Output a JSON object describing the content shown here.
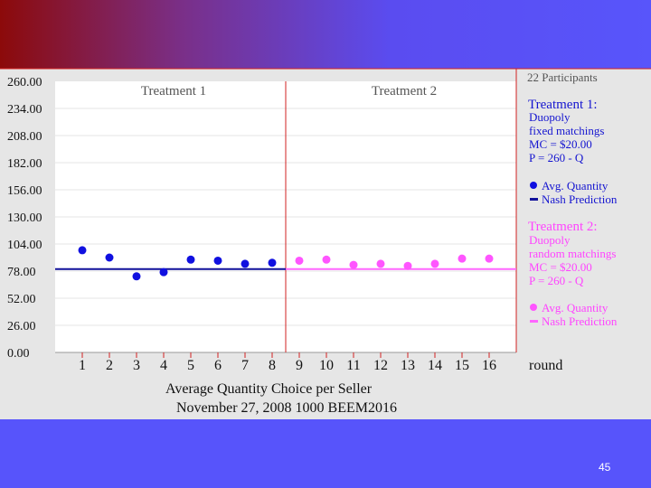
{
  "slide": {
    "number": "45"
  },
  "chart_data": {
    "type": "scatter",
    "title": "Average Quantity Choice per Seller",
    "subtitle": "November 27, 2008 1000 BEEM2016",
    "xlabel": "round",
    "ylabel": "",
    "ylim": [
      0,
      260
    ],
    "yticks": [
      "0.00",
      "26.00",
      "52.00",
      "78.00",
      "104.00",
      "130.00",
      "156.00",
      "182.00",
      "208.00",
      "234.00",
      "260.00"
    ],
    "x": [
      1,
      2,
      3,
      4,
      5,
      6,
      7,
      8,
      9,
      10,
      11,
      12,
      13,
      14,
      15,
      16
    ],
    "xticks": [
      "1",
      "2",
      "3",
      "4",
      "5",
      "6",
      "7",
      "8",
      "9",
      "10",
      "11",
      "12",
      "13",
      "14",
      "15",
      "16"
    ],
    "grid": true,
    "panels": [
      "Treatment 1",
      "Treatment 2"
    ],
    "series": [
      {
        "name": "Treatment 1 Avg. Quantity",
        "color": "#1010e0",
        "x": [
          1,
          2,
          3,
          4,
          5,
          6,
          7,
          8
        ],
        "values": [
          98,
          91,
          73,
          77,
          89,
          88,
          85,
          86
        ]
      },
      {
        "name": "Treatment 2 Avg. Quantity",
        "color": "#ff55ff",
        "x": [
          9,
          10,
          11,
          12,
          13,
          14,
          15,
          16
        ],
        "values": [
          88,
          89,
          84,
          85,
          83,
          85,
          90,
          90
        ]
      }
    ],
    "nash": [
      {
        "name": "Treatment 1 Nash Prediction",
        "color": "#10109a",
        "value": 80,
        "x_from": 0.5,
        "x_to": 8.5
      },
      {
        "name": "Treatment 2 Nash Prediction",
        "color": "#ff66ff",
        "value": 80,
        "x_from": 8.5,
        "x_to": 17.5
      }
    ],
    "legend": {
      "participants": "22 Participants",
      "t1": {
        "title": "Treatment 1:",
        "lines": [
          "Duopoly",
          "fixed matchings",
          "MC = $20.00",
          "P = 260 - Q"
        ],
        "avg_label": "Avg. Quantity",
        "nash_label": "Nash Prediction"
      },
      "t2": {
        "title": "Treatment 2:",
        "lines": [
          "Duopoly",
          "random matchings",
          "MC = $20.00",
          "P = 260 - Q"
        ],
        "avg_label": "Avg. Quantity",
        "nash_label": "Nash Prediction"
      }
    },
    "colors": {
      "t1_text": "#1515d0",
      "t2_text": "#ff44ff",
      "divider": "#d22222",
      "axis_text": "#111111"
    }
  }
}
